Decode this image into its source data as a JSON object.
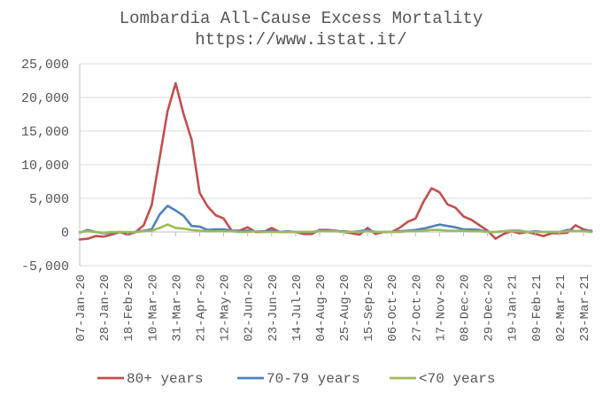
{
  "chart_data": {
    "type": "line",
    "title": "Lombardia All-Cause Excess Mortality",
    "subtitle": "https://www.istat.it/",
    "xlabel": "",
    "ylabel": "",
    "ylim": [
      -5000,
      25000
    ],
    "yticks": [
      -5000,
      0,
      5000,
      10000,
      15000,
      20000,
      25000
    ],
    "ytick_labels": [
      "-5,000",
      "0",
      "5,000",
      "10,000",
      "15,000",
      "20,000",
      "25,000"
    ],
    "grid": true,
    "legend_position": "bottom",
    "categories": [
      "07-Jan-20",
      "14-Jan-20",
      "21-Jan-20",
      "28-Jan-20",
      "04-Feb-20",
      "11-Feb-20",
      "18-Feb-20",
      "25-Feb-20",
      "03-Mar-20",
      "10-Mar-20",
      "17-Mar-20",
      "24-Mar-20",
      "31-Mar-20",
      "07-Apr-20",
      "14-Apr-20",
      "21-Apr-20",
      "28-Apr-20",
      "05-May-20",
      "12-May-20",
      "19-May-20",
      "26-May-20",
      "02-Jun-20",
      "09-Jun-20",
      "16-Jun-20",
      "23-Jun-20",
      "30-Jun-20",
      "07-Jul-20",
      "14-Jul-20",
      "21-Jul-20",
      "28-Jul-20",
      "04-Aug-20",
      "11-Aug-20",
      "18-Aug-20",
      "25-Aug-20",
      "01-Sep-20",
      "08-Sep-20",
      "15-Sep-20",
      "22-Sep-20",
      "29-Sep-20",
      "06-Oct-20",
      "13-Oct-20",
      "20-Oct-20",
      "27-Oct-20",
      "03-Nov-20",
      "10-Nov-20",
      "17-Nov-20",
      "24-Nov-20",
      "01-Dec-20",
      "08-Dec-20",
      "15-Dec-20",
      "22-Dec-20",
      "29-Dec-20",
      "05-Jan-21",
      "12-Jan-21",
      "19-Jan-21",
      "26-Jan-21",
      "02-Feb-21",
      "09-Feb-21",
      "16-Feb-21",
      "23-Feb-21",
      "02-Mar-21",
      "09-Mar-21",
      "16-Mar-21",
      "23-Mar-21",
      "30-Mar-21"
    ],
    "xtick_labels": [
      "07-Jan-20",
      "28-Jan-20",
      "18-Feb-20",
      "10-Mar-20",
      "31-Mar-20",
      "21-Apr-20",
      "12-May-20",
      "02-Jun-20",
      "23-Jun-20",
      "14-Jul-20",
      "04-Aug-20",
      "25-Aug-20",
      "15-Sep-20",
      "06-Oct-20",
      "27-Oct-20",
      "17-Nov-20",
      "08-Dec-20",
      "29-Dec-20",
      "19-Jan-21",
      "09-Feb-21",
      "02-Mar-21",
      "23-Mar-21"
    ],
    "series": [
      {
        "name": "80+ years",
        "color": "#c0504d",
        "values": [
          -1100,
          -1000,
          -600,
          -700,
          -400,
          0,
          -400,
          0,
          1000,
          4000,
          11000,
          18000,
          22100,
          17500,
          13700,
          5800,
          3800,
          2500,
          2000,
          200,
          200,
          700,
          0,
          0,
          600,
          0,
          0,
          0,
          -300,
          -300,
          300,
          300,
          200,
          0,
          -200,
          -400,
          600,
          -300,
          0,
          0,
          600,
          1500,
          2000,
          4500,
          6500,
          5900,
          4100,
          3600,
          2300,
          1800,
          1000,
          200,
          -1000,
          -300,
          100,
          -200,
          0,
          -300,
          -600,
          -200,
          -200,
          -100,
          1000,
          400,
          100
        ]
      },
      {
        "name": "70-79 years",
        "color": "#4f81bd",
        "values": [
          -100,
          300,
          0,
          -200,
          -100,
          0,
          -100,
          0,
          200,
          400,
          2600,
          3900,
          3200,
          2400,
          900,
          800,
          300,
          400,
          400,
          200,
          100,
          200,
          100,
          100,
          200,
          0,
          100,
          0,
          0,
          0,
          200,
          200,
          100,
          100,
          0,
          100,
          300,
          0,
          0,
          0,
          100,
          200,
          300,
          500,
          800,
          1100,
          900,
          700,
          400,
          400,
          300,
          0,
          0,
          100,
          200,
          200,
          0,
          100,
          0,
          0,
          0,
          300,
          100,
          200,
          200
        ]
      },
      {
        "name": "<70 years",
        "color": "#9bbb59",
        "values": [
          0,
          100,
          0,
          -100,
          0,
          0,
          0,
          0,
          100,
          200,
          600,
          1100,
          600,
          500,
          300,
          200,
          100,
          100,
          100,
          100,
          0,
          0,
          100,
          0,
          0,
          0,
          0,
          0,
          0,
          0,
          100,
          100,
          100,
          0,
          0,
          0,
          100,
          0,
          0,
          0,
          0,
          100,
          100,
          200,
          300,
          300,
          200,
          200,
          200,
          100,
          100,
          0,
          0,
          100,
          100,
          100,
          0,
          0,
          0,
          0,
          0,
          100,
          100,
          100,
          0
        ]
      }
    ]
  }
}
